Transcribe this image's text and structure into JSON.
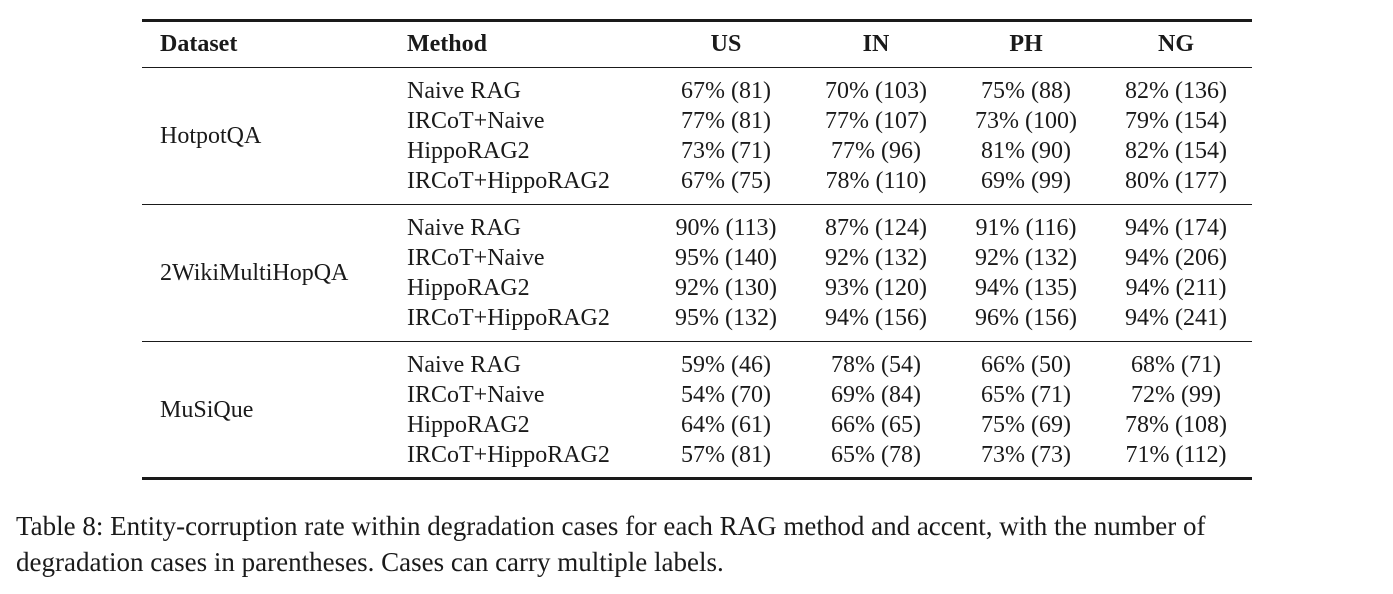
{
  "table": {
    "columns": [
      "Dataset",
      "Method",
      "US",
      "IN",
      "PH",
      "NG"
    ],
    "groups": [
      {
        "dataset": "HotpotQA",
        "rows": [
          {
            "method": "Naive RAG",
            "US": "67% (81)",
            "IN": "70% (103)",
            "PH": "75% (88)",
            "NG": "82% (136)"
          },
          {
            "method": "IRCoT+Naive",
            "US": "77% (81)",
            "IN": "77% (107)",
            "PH": "73% (100)",
            "NG": "79% (154)"
          },
          {
            "method": "HippoRAG2",
            "US": "73% (71)",
            "IN": "77% (96)",
            "PH": "81% (90)",
            "NG": "82% (154)"
          },
          {
            "method": "IRCoT+HippoRAG2",
            "US": "67% (75)",
            "IN": "78% (110)",
            "PH": "69% (99)",
            "NG": "80% (177)"
          }
        ]
      },
      {
        "dataset": "2WikiMultiHopQA",
        "rows": [
          {
            "method": "Naive RAG",
            "US": "90% (113)",
            "IN": "87% (124)",
            "PH": "91% (116)",
            "NG": "94% (174)"
          },
          {
            "method": "IRCoT+Naive",
            "US": "95% (140)",
            "IN": "92% (132)",
            "PH": "92% (132)",
            "NG": "94% (206)"
          },
          {
            "method": "HippoRAG2",
            "US": "92% (130)",
            "IN": "93% (120)",
            "PH": "94% (135)",
            "NG": "94% (211)"
          },
          {
            "method": "IRCoT+HippoRAG2",
            "US": "95% (132)",
            "IN": "94% (156)",
            "PH": "96% (156)",
            "NG": "94% (241)"
          }
        ]
      },
      {
        "dataset": "MuSiQue",
        "rows": [
          {
            "method": "Naive RAG",
            "US": "59% (46)",
            "IN": "78% (54)",
            "PH": "66% (50)",
            "NG": "68% (71)"
          },
          {
            "method": "IRCoT+Naive",
            "US": "54% (70)",
            "IN": "69% (84)",
            "PH": "65% (71)",
            "NG": "72% (99)"
          },
          {
            "method": "HippoRAG2",
            "US": "64% (61)",
            "IN": "66% (65)",
            "PH": "75% (69)",
            "NG": "78% (108)"
          },
          {
            "method": "IRCoT+HippoRAG2",
            "US": "57% (81)",
            "IN": "65% (78)",
            "PH": "73% (73)",
            "NG": "71% (112)"
          }
        ]
      }
    ]
  },
  "caption": {
    "line1": "Table 8: Entity-corruption rate within degradation cases for each RAG method and accent, with the number of",
    "line2": "degradation cases in parentheses. Cases can carry multiple labels."
  }
}
